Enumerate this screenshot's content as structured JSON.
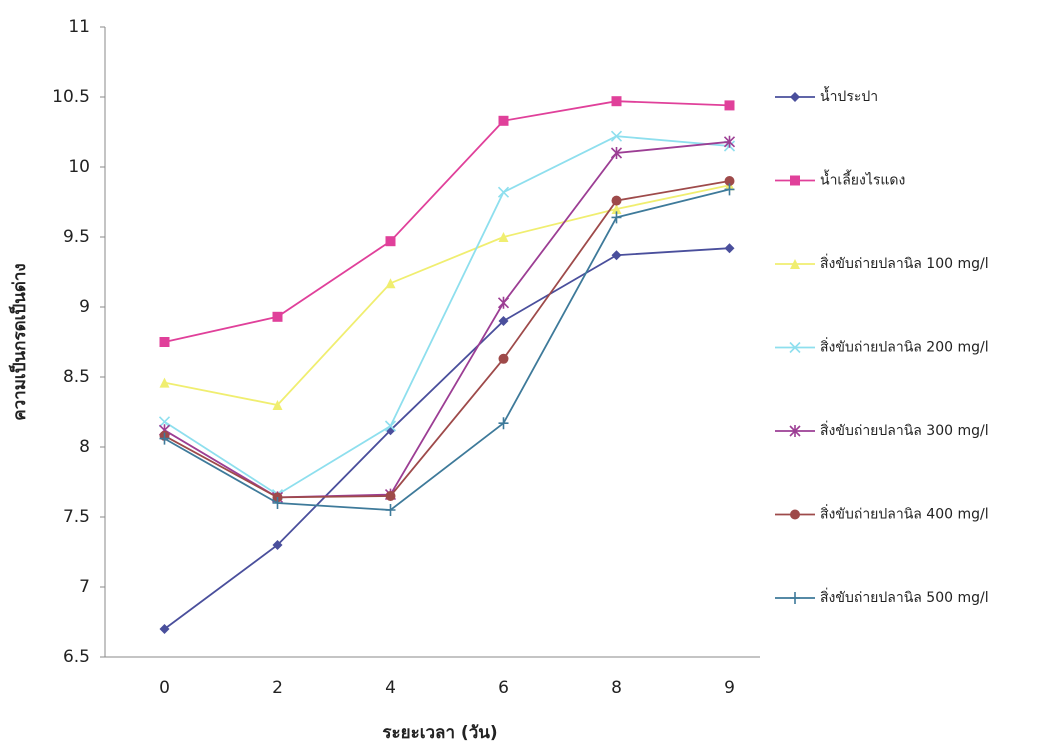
{
  "chart_data": {
    "type": "line",
    "x_label": "ระยะเวลา (วัน)",
    "y_label": "ความเป็นกรดเป็นด่าง",
    "categories": [
      "0",
      "2",
      "4",
      "6",
      "8",
      "9"
    ],
    "ylim": [
      6.5,
      11
    ],
    "yticks": [
      6.5,
      7,
      7.5,
      8,
      8.5,
      9,
      9.5,
      10,
      10.5,
      11
    ],
    "grid": false,
    "legend": "right",
    "series": [
      {
        "name": "น้ำประปา",
        "color": "#4a4f9c",
        "marker": "diamond",
        "values": [
          6.7,
          7.3,
          8.12,
          8.9,
          9.37,
          9.42
        ]
      },
      {
        "name": "น้ำเลี้ยงไรแดง",
        "color": "#e0409a",
        "marker": "square",
        "values": [
          8.75,
          8.93,
          9.47,
          10.33,
          10.47,
          10.44
        ]
      },
      {
        "name": "สิ่งขับถ่ายปลานิล  100 mg/l",
        "color": "#f0ee70",
        "marker": "triangle",
        "values": [
          8.46,
          8.3,
          9.17,
          9.5,
          9.7,
          9.87
        ]
      },
      {
        "name": "สิ่งขับถ่ายปลานิล  200 mg/l",
        "color": "#8edfee",
        "marker": "x",
        "values": [
          8.18,
          7.66,
          8.15,
          9.82,
          10.22,
          10.15
        ]
      },
      {
        "name": "สิ่งขับถ่ายปลานิล  300 mg/l",
        "color": "#9c3e94",
        "marker": "asterisk",
        "values": [
          8.12,
          7.64,
          7.66,
          9.03,
          10.1,
          10.18
        ]
      },
      {
        "name": "สิ่งขับถ่ายปลานิล  400 mg/l",
        "color": "#9e4a4a",
        "marker": "circle",
        "values": [
          8.08,
          7.64,
          7.65,
          8.63,
          9.76,
          9.9
        ]
      },
      {
        "name": "สิ่งขับถ่ายปลานิล  500 mg/l",
        "color": "#3e7a9a",
        "marker": "plus",
        "values": [
          8.06,
          7.6,
          7.55,
          8.17,
          9.64,
          9.84
        ]
      }
    ]
  }
}
